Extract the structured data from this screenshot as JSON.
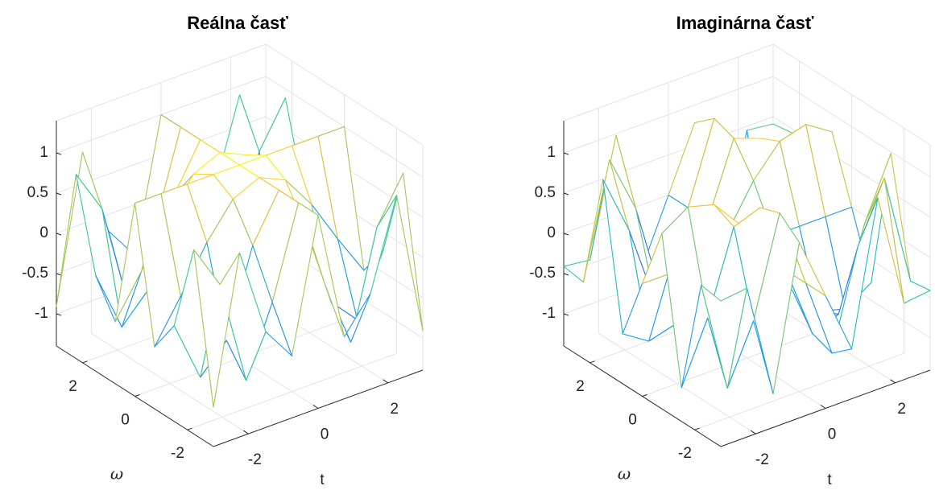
{
  "chart_data": [
    {
      "type": "surface",
      "title": "Reálna časť",
      "xlabel": "t",
      "ylabel": "ω",
      "t": [
        -3,
        -2.25,
        -1.5,
        -0.75,
        0,
        0.75,
        1.5,
        2.25,
        3
      ],
      "omega": [
        -3,
        -2.25,
        -1.5,
        -0.75,
        0,
        0.75,
        1.5,
        2.25,
        3
      ],
      "z": [
        [
          -0.91,
          0.89,
          -0.21,
          -0.63,
          1,
          -0.63,
          -0.21,
          0.89,
          -0.91
        ],
        [
          0.89,
          0.34,
          -0.97,
          -0.12,
          1,
          -0.12,
          -0.97,
          0.34,
          0.89
        ],
        [
          -0.21,
          -0.97,
          -0.63,
          0.43,
          1,
          0.43,
          -0.63,
          -0.97,
          -0.21
        ],
        [
          -0.63,
          -0.12,
          0.43,
          0.85,
          1,
          0.85,
          0.43,
          -0.12,
          -0.63
        ],
        [
          1,
          1,
          1,
          1,
          1,
          1,
          1,
          1,
          1
        ],
        [
          -0.63,
          -0.12,
          0.43,
          0.85,
          1,
          0.85,
          0.43,
          -0.12,
          -0.63
        ],
        [
          -0.21,
          -0.97,
          -0.63,
          0.43,
          1,
          0.43,
          -0.63,
          -0.97,
          -0.21
        ],
        [
          0.89,
          0.34,
          -0.97,
          -0.12,
          1,
          -0.12,
          -0.97,
          0.34,
          0.89
        ],
        [
          -0.91,
          0.89,
          -0.21,
          -0.63,
          1,
          -0.63,
          -0.21,
          0.89,
          -0.91
        ]
      ],
      "xlim": [
        -3,
        3
      ],
      "ylim": [
        -3,
        3
      ],
      "zlim": [
        -1.4,
        1.4
      ],
      "xticks": [
        -2,
        0,
        2
      ],
      "yticks": [
        -2,
        0,
        2
      ],
      "zticks": [
        -1,
        -0.5,
        0,
        0.5,
        1
      ],
      "colormap": "parula",
      "grid": true
    },
    {
      "type": "surface",
      "title": "Imaginárna časť",
      "xlabel": "t",
      "ylabel": "ω",
      "t": [
        -3,
        -2.25,
        -1.5,
        -0.75,
        0,
        0.75,
        1.5,
        2.25,
        3
      ],
      "omega": [
        -3,
        -2.25,
        -1.5,
        -0.75,
        0,
        0.75,
        1.5,
        2.25,
        3
      ],
      "z": [
        [
          0.41,
          0.45,
          -0.98,
          0.78,
          0,
          -0.78,
          0.98,
          -0.45,
          -0.41
        ],
        [
          0.45,
          -0.95,
          -0.23,
          0.99,
          0,
          -0.99,
          0.23,
          0.95,
          -0.45
        ],
        [
          -0.98,
          -0.23,
          0.78,
          0.9,
          0,
          -0.9,
          -0.78,
          0.23,
          0.98
        ],
        [
          0.78,
          0.99,
          0.9,
          0.53,
          0,
          -0.53,
          -0.9,
          -0.99,
          -0.78
        ],
        [
          0,
          0,
          0,
          0,
          0,
          0,
          0,
          0,
          0
        ],
        [
          -0.78,
          -0.99,
          -0.9,
          -0.53,
          0,
          0.53,
          0.9,
          0.99,
          0.78
        ],
        [
          0.98,
          0.23,
          -0.78,
          -0.9,
          0,
          0.9,
          0.78,
          -0.23,
          -0.98
        ],
        [
          -0.45,
          0.95,
          0.23,
          -0.99,
          0,
          0.99,
          -0.23,
          -0.95,
          0.45
        ],
        [
          -0.41,
          -0.45,
          0.98,
          -0.78,
          0,
          0.78,
          -0.98,
          0.45,
          0.41
        ]
      ],
      "xlim": [
        -3,
        3
      ],
      "ylim": [
        -3,
        3
      ],
      "zlim": [
        -1.4,
        1.4
      ],
      "xticks": [
        -2,
        0,
        2
      ],
      "yticks": [
        -2,
        0,
        2
      ],
      "zticks": [
        -1,
        -0.5,
        0,
        0.5,
        1
      ],
      "colormap": "parula",
      "grid": true
    }
  ]
}
